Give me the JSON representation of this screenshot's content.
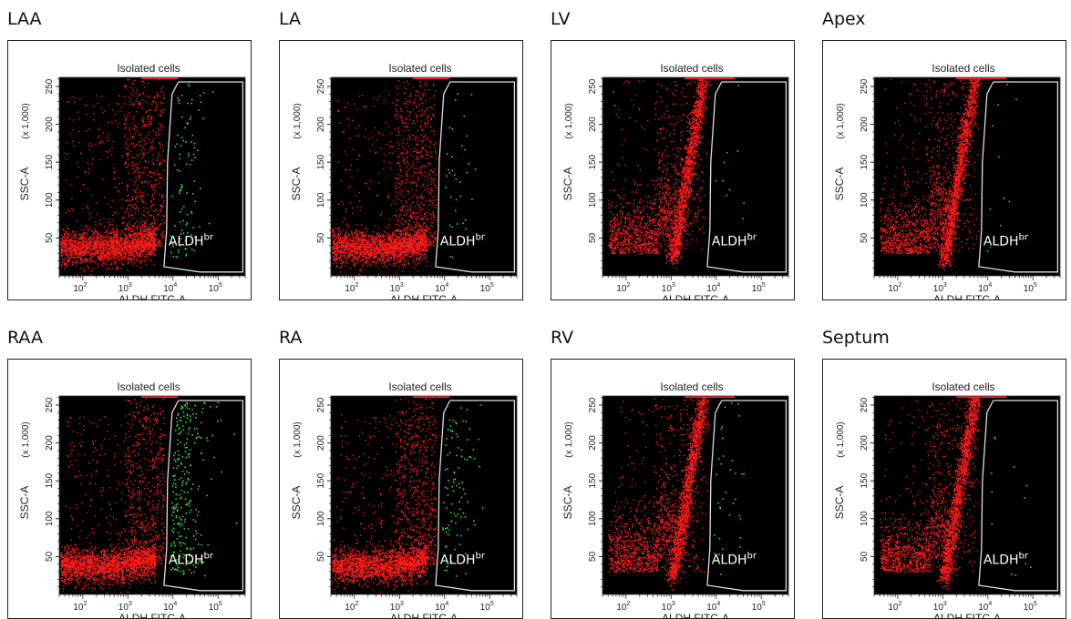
{
  "shared": {
    "panel_label": "Isolated cells",
    "gate_label_main": "ALDH",
    "gate_label_sup": "br",
    "xlabel": "ALDH FITC-A",
    "ylabel": "SSC-A",
    "yunit": "(x 1,000)",
    "ytick_labels": [
      "50",
      "100",
      "150",
      "200",
      "250"
    ],
    "xtick_labels": [
      {
        "base": "10",
        "exp": "2"
      },
      {
        "base": "10",
        "exp": "3"
      },
      {
        "base": "10",
        "exp": "4"
      },
      {
        "base": "10",
        "exp": "5"
      }
    ],
    "colors": {
      "background": "#000000",
      "cells": "#ff1a1a",
      "gated_cells": "#33dd33",
      "gate": "#dddddd"
    }
  },
  "chart_data": [
    {
      "type": "scatter",
      "title": "LAA",
      "xscale": "log",
      "xlim": [
        30,
        400000
      ],
      "ylim": [
        0,
        262
      ],
      "cloud": "horizontal",
      "gated_events": "moderate",
      "series": [
        {
          "name": "",
          "color": "#ff1a1a"
        },
        {
          "name": "ALDHbr",
          "color": "#33dd33"
        }
      ]
    },
    {
      "type": "scatter",
      "title": "LA",
      "xscale": "log",
      "xlim": [
        30,
        400000
      ],
      "ylim": [
        0,
        262
      ],
      "cloud": "horizontal",
      "gated_events": "sparse",
      "series": [
        {
          "name": "",
          "color": "#ff1a1a"
        },
        {
          "name": "ALDHbr",
          "color": "#33dd33"
        }
      ]
    },
    {
      "type": "scatter",
      "title": "LV",
      "xscale": "log",
      "xlim": [
        30,
        400000
      ],
      "ylim": [
        0,
        262
      ],
      "cloud": "diagonal",
      "gated_events": "very sparse",
      "series": [
        {
          "name": "",
          "color": "#ff1a1a"
        },
        {
          "name": "ALDHbr",
          "color": "#33dd33"
        }
      ]
    },
    {
      "type": "scatter",
      "title": "Apex",
      "xscale": "log",
      "xlim": [
        30,
        400000
      ],
      "ylim": [
        0,
        262
      ],
      "cloud": "diagonal",
      "gated_events": "very sparse",
      "series": [
        {
          "name": "",
          "color": "#ff1a1a"
        },
        {
          "name": "ALDHbr",
          "color": "#33dd33"
        }
      ]
    },
    {
      "type": "scatter",
      "title": "RAA",
      "xscale": "log",
      "xlim": [
        30,
        400000
      ],
      "ylim": [
        0,
        262
      ],
      "cloud": "horizontal",
      "gated_events": "dense",
      "series": [
        {
          "name": "",
          "color": "#ff1a1a"
        },
        {
          "name": "ALDHbr",
          "color": "#33dd33"
        }
      ]
    },
    {
      "type": "scatter",
      "title": "RA",
      "xscale": "log",
      "xlim": [
        30,
        400000
      ],
      "ylim": [
        0,
        262
      ],
      "cloud": "horizontal",
      "gated_events": "moderate",
      "series": [
        {
          "name": "",
          "color": "#ff1a1a"
        },
        {
          "name": "ALDHbr",
          "color": "#33dd33"
        }
      ]
    },
    {
      "type": "scatter",
      "title": "RV",
      "xscale": "log",
      "xlim": [
        30,
        400000
      ],
      "ylim": [
        0,
        262
      ],
      "cloud": "diagonal",
      "gated_events": "sparse",
      "series": [
        {
          "name": "",
          "color": "#ff1a1a"
        },
        {
          "name": "ALDHbr",
          "color": "#33dd33"
        }
      ]
    },
    {
      "type": "scatter",
      "title": "Septum",
      "xscale": "log",
      "xlim": [
        30,
        400000
      ],
      "ylim": [
        0,
        262
      ],
      "cloud": "diagonal",
      "gated_events": "very sparse",
      "series": [
        {
          "name": "",
          "color": "#ff1a1a"
        },
        {
          "name": "ALDHbr",
          "color": "#33dd33"
        }
      ]
    }
  ]
}
